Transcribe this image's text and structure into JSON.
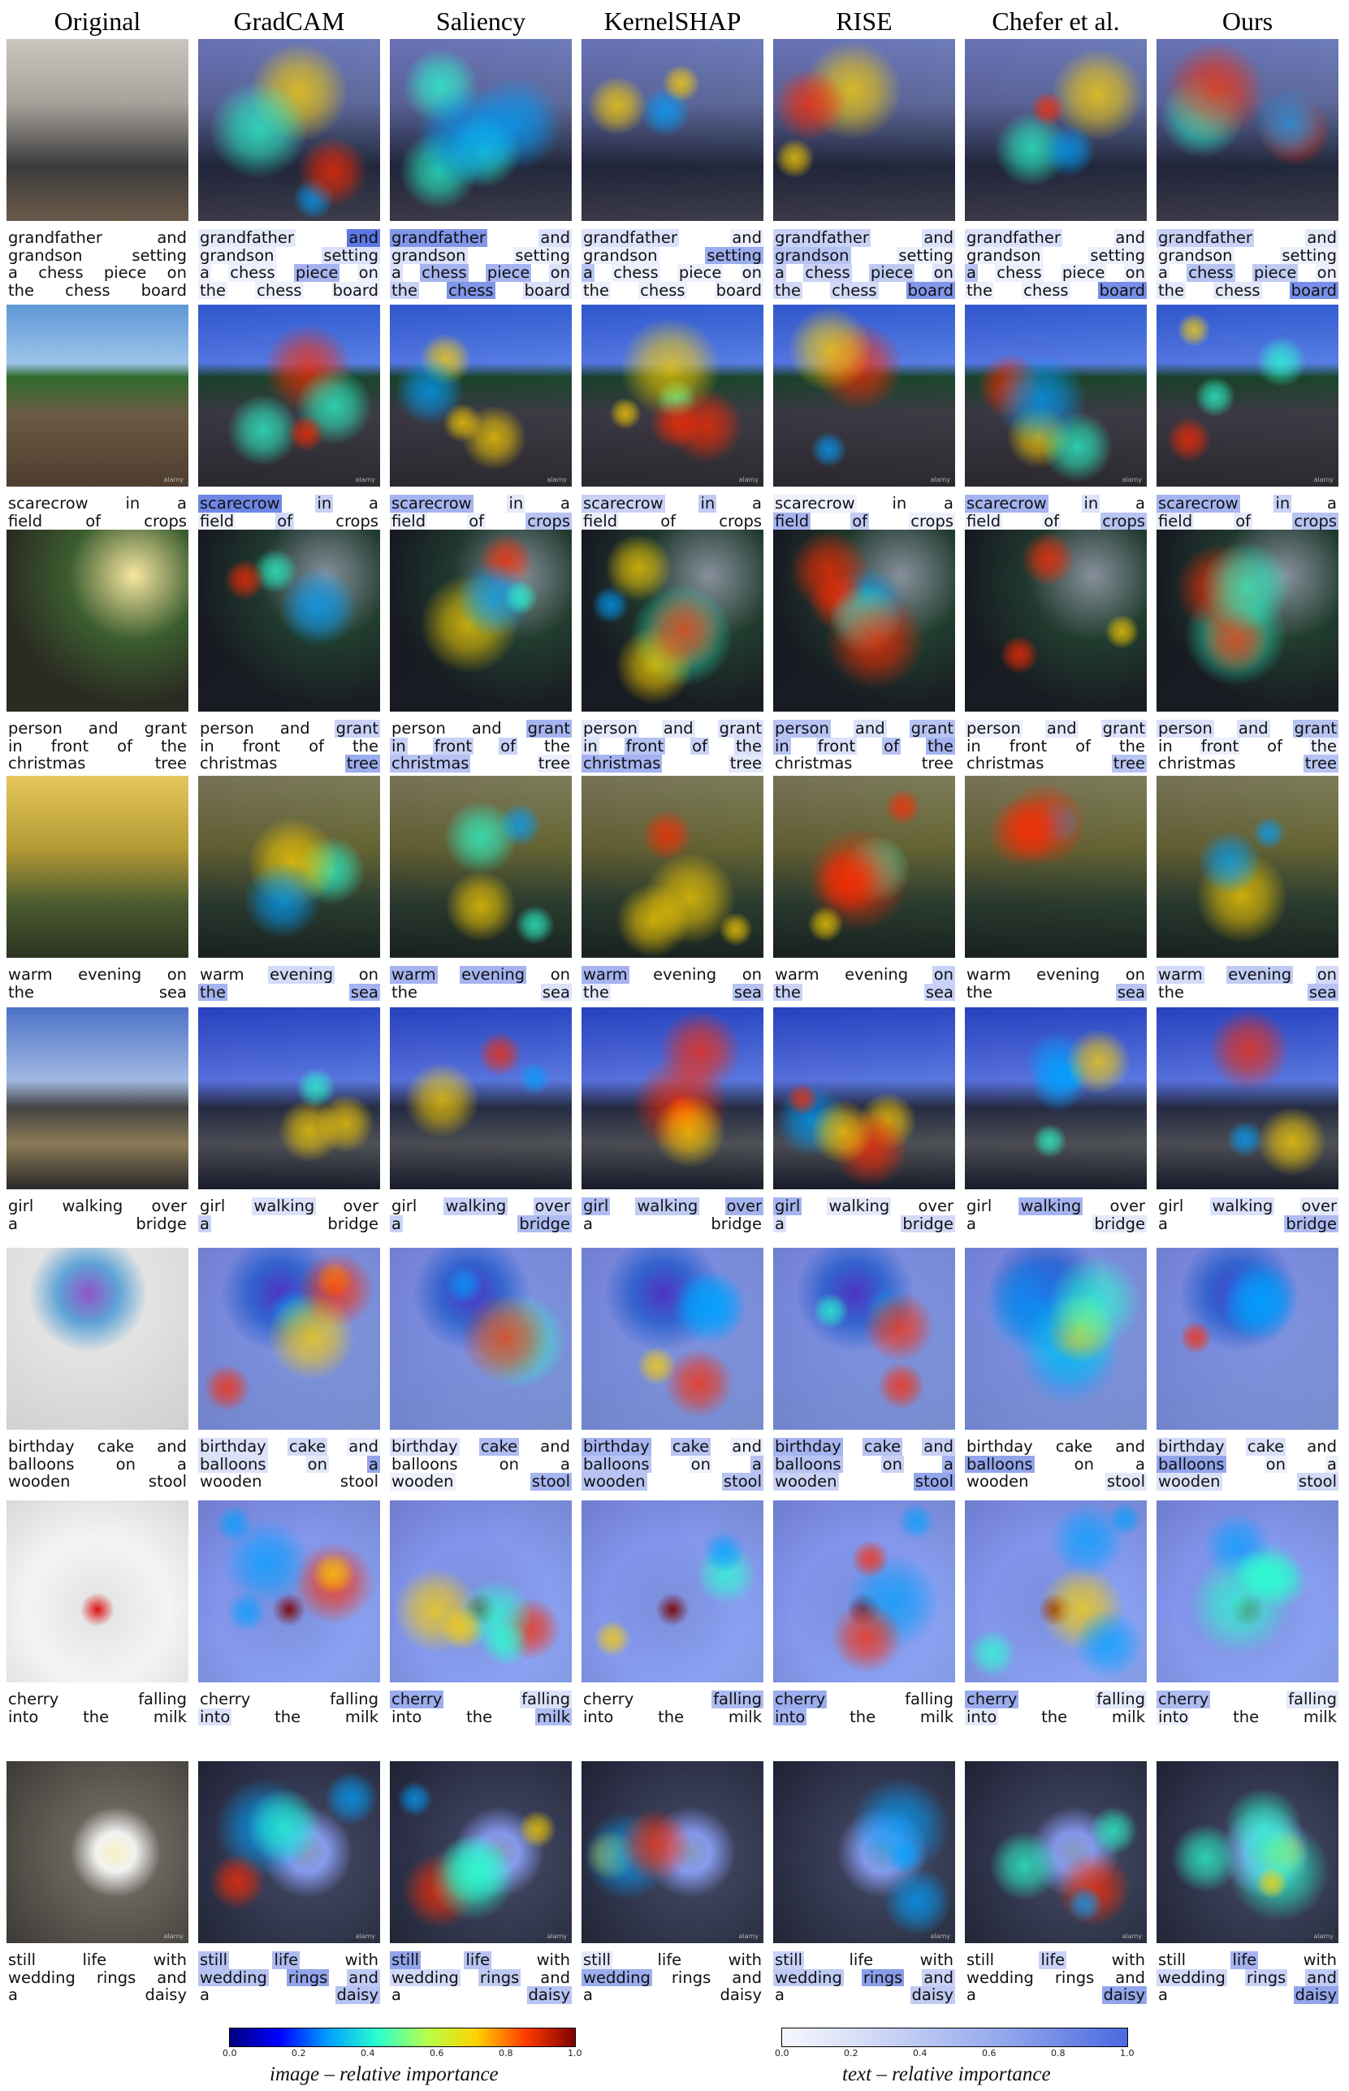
{
  "columns": [
    "Original",
    "GradCAM",
    "Saliency",
    "KernelSHAP",
    "RISE",
    "Chefer et al.",
    "Ours"
  ],
  "rows": [
    {
      "scene": "chess",
      "caption_lines": [
        [
          "grandfather",
          "and"
        ],
        [
          "grandson",
          "setting"
        ],
        [
          "a",
          "chess",
          "piece",
          "on"
        ],
        [
          "the",
          "chess",
          "board"
        ]
      ],
      "text_importance": [
        [
          0,
          0,
          0,
          0,
          0,
          0,
          0,
          0,
          0,
          0,
          0
        ],
        [
          0.15,
          0.9,
          0.1,
          0.2,
          0.1,
          0.1,
          0.5,
          0.1,
          0.1,
          0.1,
          0.1
        ],
        [
          0.7,
          0.2,
          0.2,
          0.1,
          0.2,
          0.5,
          0.5,
          0.2,
          0.3,
          0.7,
          0.2
        ],
        [
          0.2,
          0.1,
          0.1,
          0.55,
          0.4,
          0.1,
          0.1,
          0.1,
          0.1,
          0.1,
          0.1
        ],
        [
          0.3,
          0.2,
          0.4,
          0.1,
          0.3,
          0.3,
          0.35,
          0.2,
          0.25,
          0.25,
          0.7
        ],
        [
          0.2,
          0.1,
          0.1,
          0.1,
          0.4,
          0.1,
          0.1,
          0.1,
          0.1,
          0.1,
          0.75
        ],
        [
          0.3,
          0.15,
          0.1,
          0.1,
          0.1,
          0.4,
          0.35,
          0.1,
          0.15,
          0.15,
          0.75
        ]
      ]
    },
    {
      "scene": "field",
      "caption_lines": [
        [
          "scarecrow",
          "in",
          "a"
        ],
        [
          "field",
          "of",
          "crops"
        ]
      ],
      "text_importance": [
        [
          0,
          0,
          0,
          0,
          0,
          0
        ],
        [
          0.8,
          0.3,
          0.05,
          0.1,
          0.25,
          0.05
        ],
        [
          0.5,
          0.15,
          0.05,
          0.1,
          0.1,
          0.4
        ],
        [
          0.3,
          0.35,
          0.05,
          0.1,
          0.05,
          0.05
        ],
        [
          0.1,
          0.05,
          0.05,
          0.5,
          0.35,
          0.1
        ],
        [
          0.5,
          0.2,
          0.05,
          0.1,
          0.1,
          0.4
        ],
        [
          0.5,
          0.3,
          0.05,
          0.15,
          0.15,
          0.4
        ]
      ]
    },
    {
      "scene": "xmas",
      "caption_lines": [
        [
          "person",
          "and",
          "grant"
        ],
        [
          "in",
          "front",
          "of",
          "the"
        ],
        [
          "christmas",
          "tree"
        ]
      ],
      "text_importance": [
        [
          0,
          0,
          0,
          0,
          0,
          0,
          0,
          0,
          0
        ],
        [
          0.05,
          0.05,
          0.3,
          0.05,
          0.05,
          0.05,
          0.05,
          0.05,
          0.55
        ],
        [
          0.05,
          0.05,
          0.5,
          0.3,
          0.3,
          0.3,
          0.05,
          0.4,
          0.1
        ],
        [
          0.15,
          0.15,
          0.2,
          0.2,
          0.4,
          0.3,
          0.2,
          0.5,
          0.15
        ],
        [
          0.4,
          0.2,
          0.4,
          0.4,
          0.2,
          0.4,
          0.5,
          0.05,
          0.05
        ],
        [
          0.1,
          0.15,
          0.2,
          0.05,
          0.05,
          0.05,
          0.05,
          0.05,
          0.4
        ],
        [
          0.2,
          0.2,
          0.4,
          0.05,
          0.1,
          0.05,
          0.1,
          0.05,
          0.4
        ]
      ]
    },
    {
      "scene": "sea",
      "caption_lines": [
        [
          "warm",
          "evening",
          "on"
        ],
        [
          "the",
          "sea"
        ]
      ],
      "text_importance": [
        [
          0,
          0,
          0,
          0,
          0
        ],
        [
          0.05,
          0.25,
          0.05,
          0.5,
          0.5
        ],
        [
          0.5,
          0.5,
          0.05,
          0.05,
          0.2
        ],
        [
          0.5,
          0.05,
          0.05,
          0.15,
          0.4
        ],
        [
          0.05,
          0.05,
          0.3,
          0.3,
          0.3
        ],
        [
          0.05,
          0.05,
          0.05,
          0.05,
          0.4
        ],
        [
          0.25,
          0.35,
          0.25,
          0.05,
          0.4
        ]
      ]
    },
    {
      "scene": "bridge",
      "caption_lines": [
        [
          "girl",
          "walking",
          "over"
        ],
        [
          "a",
          "bridge"
        ]
      ],
      "text_importance": [
        [
          0,
          0,
          0,
          0,
          0
        ],
        [
          0.05,
          0.2,
          0.05,
          0.3,
          0.05
        ],
        [
          0.05,
          0.3,
          0.3,
          0.3,
          0.45
        ],
        [
          0.45,
          0.35,
          0.5,
          0.05,
          0.05
        ],
        [
          0.5,
          0.15,
          0.05,
          0.2,
          0.25
        ],
        [
          0.05,
          0.5,
          0.05,
          0.05,
          0.15
        ],
        [
          0.05,
          0.2,
          0.15,
          0.05,
          0.45
        ]
      ]
    },
    {
      "scene": "balloons",
      "caption_lines": [
        [
          "birthday",
          "cake",
          "and"
        ],
        [
          "balloons",
          "on",
          "a"
        ],
        [
          "wooden",
          "stool"
        ]
      ],
      "text_importance": [
        [
          0,
          0,
          0,
          0,
          0,
          0,
          0,
          0
        ],
        [
          0.2,
          0.25,
          0.1,
          0.2,
          0.15,
          0.6,
          0.05,
          0.05
        ],
        [
          0.2,
          0.45,
          0.05,
          0.05,
          0.05,
          0.05,
          0.1,
          0.5
        ],
        [
          0.5,
          0.4,
          0.1,
          0.4,
          0.1,
          0.4,
          0.4,
          0.4
        ],
        [
          0.5,
          0.4,
          0.3,
          0.4,
          0.3,
          0.5,
          0.3,
          0.6
        ],
        [
          0.05,
          0.05,
          0.05,
          0.6,
          0.05,
          0.05,
          0.05,
          0.15
        ],
        [
          0.25,
          0.2,
          0.05,
          0.6,
          0.1,
          0.1,
          0.2,
          0.25
        ]
      ]
    },
    {
      "scene": "cherry",
      "caption_lines": [
        [
          "cherry",
          "falling"
        ],
        [
          "into",
          "the",
          "milk"
        ]
      ],
      "text_importance": [
        [
          0,
          0,
          0,
          0,
          0
        ],
        [
          0.05,
          0.05,
          0.2,
          0.05,
          0.05
        ],
        [
          0.55,
          0.2,
          0.05,
          0.05,
          0.45
        ],
        [
          0.05,
          0.45,
          0.05,
          0.05,
          0.05
        ],
        [
          0.55,
          0.05,
          0.5,
          0.05,
          0.05
        ],
        [
          0.55,
          0.15,
          0.15,
          0.05,
          0.05
        ],
        [
          0.45,
          0.15,
          0.1,
          0.05,
          0.05
        ]
      ]
    },
    {
      "scene": "daisy",
      "caption_lines": [
        [
          "still",
          "life",
          "with"
        ],
        [
          "wedding",
          "rings",
          "and"
        ],
        [
          "a",
          "daisy"
        ]
      ],
      "text_importance": [
        [
          0,
          0,
          0,
          0,
          0,
          0,
          0,
          0
        ],
        [
          0.4,
          0.45,
          0.05,
          0.4,
          0.6,
          0.35,
          0.05,
          0.4
        ],
        [
          0.6,
          0.4,
          0.05,
          0.25,
          0.35,
          0.05,
          0.05,
          0.4
        ],
        [
          0.15,
          0.05,
          0.05,
          0.55,
          0.05,
          0.05,
          0.05,
          0.05
        ],
        [
          0.3,
          0.05,
          0.05,
          0.35,
          0.65,
          0.3,
          0.05,
          0.35
        ],
        [
          0.05,
          0.3,
          0.05,
          0.05,
          0.05,
          0.05,
          0.05,
          0.6
        ],
        [
          0.05,
          0.5,
          0.05,
          0.25,
          0.3,
          0.35,
          0.05,
          0.6
        ]
      ]
    }
  ],
  "colorbars": {
    "image": {
      "ticks": [
        "0.0",
        "0.2",
        "0.4",
        "0.6",
        "0.8",
        "1.0"
      ],
      "label": "image – relative importance"
    },
    "text": {
      "ticks": [
        "0.0",
        "0.2",
        "0.4",
        "0.6",
        "0.8",
        "1.0"
      ],
      "label": "text – relative importance"
    }
  },
  "watermark": "alamy"
}
